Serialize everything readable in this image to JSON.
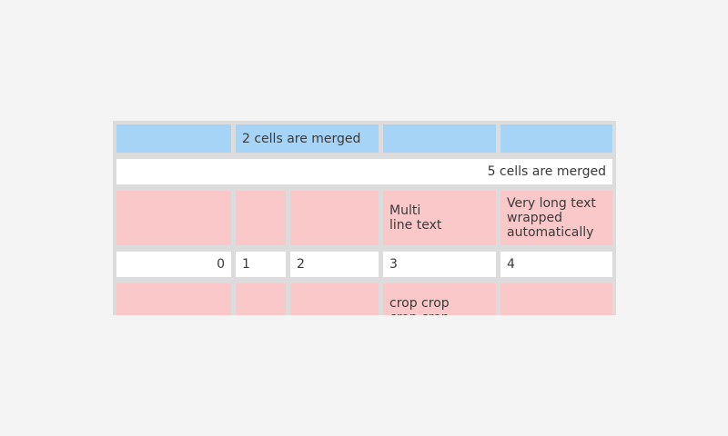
{
  "app": {
    "background_color": "#f4f4f4",
    "widget": "table"
  },
  "table": {
    "colors": {
      "header_blue": "#a5d4f6",
      "highlight_pink": "#fac8c8",
      "cell_white": "#ffffff",
      "border_gray": "#dcdcdc",
      "text": "#3a3a3a"
    },
    "cells": {
      "r1_merged": "2 cells are merged",
      "r2_merged": "5 cells are merged",
      "r3_c4": "Multi\nline text",
      "r3_c5": "Very long text wrapped automatically",
      "r4_c1": "0",
      "r4_c2": "1",
      "r4_c3": "2",
      "r4_c4": "3",
      "r4_c5": "4",
      "r5_c4": "crop crop\ncrop crop"
    }
  }
}
